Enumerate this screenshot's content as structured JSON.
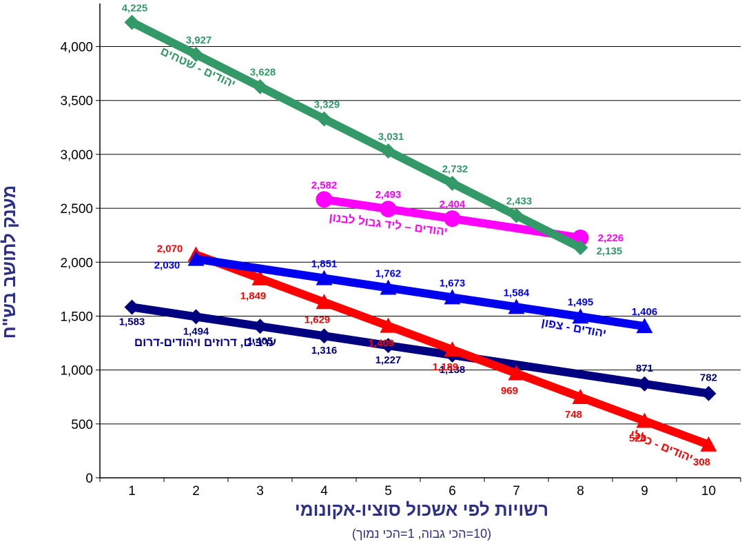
{
  "chart_data": {
    "type": "line",
    "xlabel": "רשויות לפי אשכול סוציו-אקונומי",
    "xsublabel": "(10=הכי גבוה, 1=הכי נמוך)",
    "ylabel": "מענק לתושב בש\"ח",
    "ylim": [
      0,
      4400
    ],
    "yticks": [
      0,
      500,
      1000,
      1500,
      2000,
      2500,
      3000,
      3500,
      4000
    ],
    "ytick_labels": [
      "0",
      "500",
      "1,000",
      "1,500",
      "2,000",
      "2,500",
      "3,000",
      "3,500",
      "4,000"
    ],
    "xlim": [
      0.5,
      10.5
    ],
    "xticks": [
      1,
      2,
      3,
      4,
      5,
      6,
      7,
      8,
      9,
      10
    ],
    "xtick_labels": [
      "1",
      "2",
      "3",
      "4",
      "5",
      "6",
      "7",
      "8",
      "9",
      "10"
    ],
    "series": [
      {
        "name": "ערבים, דרוזים ויהודים-דרום",
        "color": "#000080",
        "marker": "diamond",
        "x": [
          1,
          2,
          3,
          4,
          5,
          6,
          9,
          10
        ],
        "values": [
          1583,
          1494,
          1405,
          1316,
          1227,
          1138,
          871,
          782
        ],
        "labels": [
          "1,583",
          "1,494",
          "1,405",
          "1,316",
          "1,227",
          "1,138",
          "871",
          "782"
        ]
      },
      {
        "name": "יהודים - כללי",
        "color": "#ff0000",
        "marker": "triangle",
        "x": [
          2,
          3,
          4,
          5,
          6,
          7,
          8,
          9,
          10
        ],
        "values": [
          2070,
          1849,
          1629,
          1409,
          1189,
          969,
          748,
          528,
          308
        ],
        "labels": [
          "2,070",
          "1,849",
          "1,629",
          "1,409",
          "1,189",
          "969",
          "748",
          "528",
          "308"
        ]
      },
      {
        "name": "יהודים - צפון",
        "color": "#0000ee",
        "marker": "triangle",
        "x": [
          2,
          4,
          5,
          6,
          7,
          8,
          9
        ],
        "values": [
          2030,
          1851,
          1762,
          1673,
          1584,
          1495,
          1406
        ],
        "labels": [
          "2,030",
          "1,851",
          "1,762",
          "1,673",
          "1,584",
          "1,495",
          "1,406"
        ]
      },
      {
        "name": "יהודים – ליד גבול לבנון",
        "color": "#ff00ff",
        "marker": "circle",
        "x": [
          4,
          5,
          6,
          8
        ],
        "values": [
          2582,
          2493,
          2404,
          2226
        ],
        "labels": [
          "2,582",
          "2,493",
          "2,404",
          "2,226"
        ]
      },
      {
        "name": "יהודים - שטחים",
        "color": "#339966",
        "marker": "diamond",
        "x": [
          1,
          2,
          3,
          4,
          5,
          6,
          7,
          8
        ],
        "values": [
          4225,
          3927,
          3628,
          3329,
          3031,
          2732,
          2433,
          2135
        ],
        "labels": [
          "4,225",
          "3,927",
          "3,628",
          "3,329",
          "3,031",
          "2,732",
          "2,433",
          "2,135"
        ]
      }
    ]
  }
}
